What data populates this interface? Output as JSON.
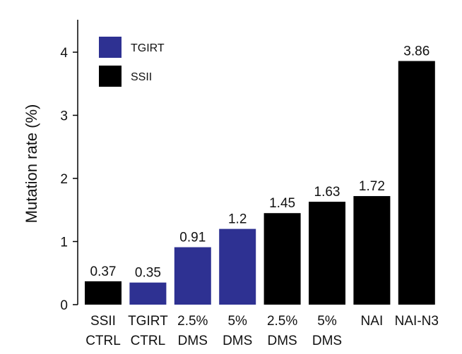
{
  "chart_data": {
    "type": "bar",
    "ylabel": "Mutation rate (%)",
    "ylim": [
      0,
      4.5
    ],
    "yticks": [
      0,
      1,
      2,
      3,
      4
    ],
    "grid": false,
    "legend_position": "top-left",
    "legend": [
      {
        "name": "TGIRT",
        "color": "#2e3192"
      },
      {
        "name": "SSII",
        "color": "#000000"
      }
    ],
    "categories": [
      [
        "SSII",
        "CTRL"
      ],
      [
        "TGIRT",
        "CTRL"
      ],
      [
        "2.5%",
        "DMS"
      ],
      [
        "5%",
        "DMS"
      ],
      [
        "2.5%",
        "DMS"
      ],
      [
        "5%",
        "DMS"
      ],
      [
        "NAI"
      ],
      [
        "NAI-N3"
      ]
    ],
    "values": [
      0.37,
      0.35,
      0.91,
      1.2,
      1.45,
      1.63,
      1.72,
      3.86
    ],
    "value_labels": [
      "0.37",
      "0.35",
      "0.91",
      "1.2",
      "1.45",
      "1.63",
      "1.72",
      "3.86"
    ],
    "groups": [
      "SSII",
      "TGIRT",
      "TGIRT",
      "TGIRT",
      "SSII",
      "SSII",
      "SSII",
      "SSII"
    ]
  }
}
